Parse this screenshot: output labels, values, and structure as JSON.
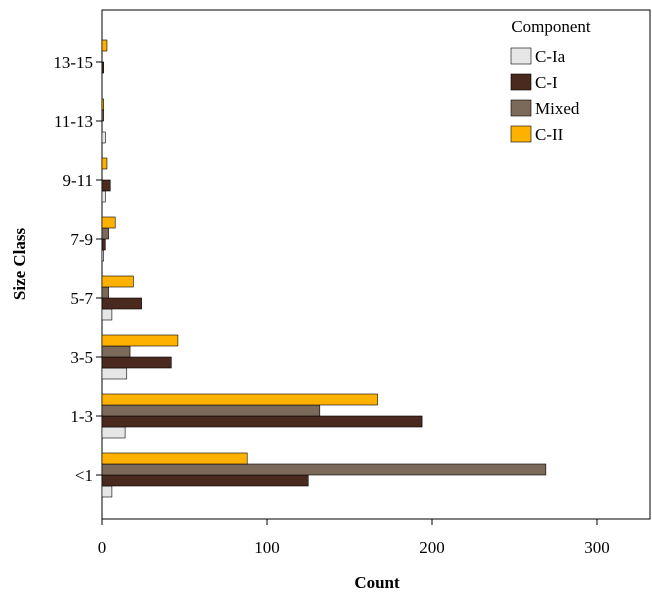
{
  "chart_data": {
    "type": "bar",
    "orientation": "horizontal",
    "xlabel": "Count",
    "ylabel": "Size Class",
    "xlim": [
      0,
      330
    ],
    "xticks": [
      0,
      100,
      200,
      300
    ],
    "xtick_labels": [
      "0",
      "100",
      "200",
      "300"
    ],
    "categories": [
      "<1",
      "1-3",
      "3-5",
      "5-7",
      "7-9",
      "9-11",
      "11-13",
      "13-15"
    ],
    "series": [
      {
        "name": "C-Ia",
        "color": "#e6e6e6",
        "values": [
          6,
          14,
          15,
          6,
          1,
          2,
          2,
          0
        ]
      },
      {
        "name": "C-I",
        "color": "#4a2a1e",
        "values": [
          125,
          194,
          42,
          24,
          2,
          5,
          0,
          1
        ]
      },
      {
        "name": "Mixed",
        "color": "#7b6a5a",
        "values": [
          269,
          132,
          17,
          4,
          4,
          0,
          1,
          0
        ]
      },
      {
        "name": "C-II",
        "color": "#ffb100",
        "values": [
          88,
          167,
          46,
          19,
          8,
          3,
          1,
          3
        ]
      }
    ],
    "legend": {
      "title": "Component",
      "placement": "top-right"
    },
    "grid": false
  }
}
